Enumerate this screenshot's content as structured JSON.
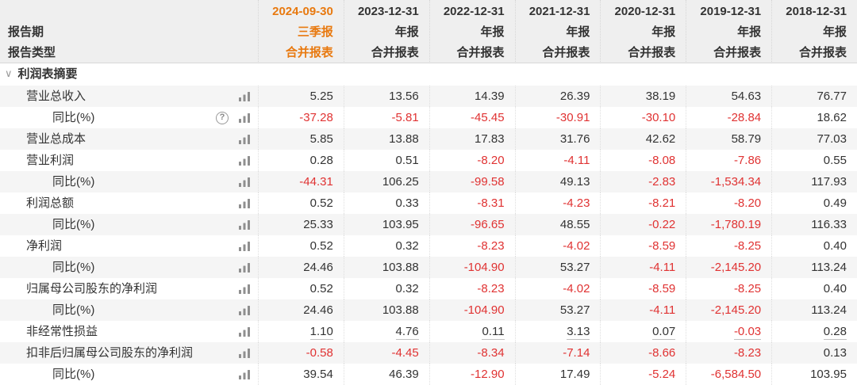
{
  "colors": {
    "accent_orange": "#e8790f",
    "negative_red": "#e03232",
    "text_dark": "#333333",
    "stripe_gray": "#f5f5f5",
    "header_gray": "#efefef"
  },
  "header": {
    "row_period_label": "报告期",
    "row_type_label": "报告类型",
    "columns": [
      {
        "date": "2024-09-30",
        "period": "三季报",
        "type": "合并报表",
        "highlight": true
      },
      {
        "date": "2023-12-31",
        "period": "年报",
        "type": "合并报表",
        "highlight": false
      },
      {
        "date": "2022-12-31",
        "period": "年报",
        "type": "合并报表",
        "highlight": false
      },
      {
        "date": "2021-12-31",
        "period": "年报",
        "type": "合并报表",
        "highlight": false
      },
      {
        "date": "2020-12-31",
        "period": "年报",
        "type": "合并报表",
        "highlight": false
      },
      {
        "date": "2019-12-31",
        "period": "年报",
        "type": "合并报表",
        "highlight": false
      },
      {
        "date": "2018-12-31",
        "period": "年报",
        "type": "合并报表",
        "highlight": false
      }
    ]
  },
  "section": {
    "caret": "∨",
    "title": "利润表摘要"
  },
  "chart_data": {
    "type": "table",
    "title": "利润表摘要",
    "columns": [
      "2024-09-30",
      "2023-12-31",
      "2022-12-31",
      "2021-12-31",
      "2020-12-31",
      "2019-12-31",
      "2018-12-31"
    ],
    "rows": [
      {
        "label": "营业总收入",
        "indent": 1,
        "help": false,
        "underline": false,
        "values": [
          "5.25",
          "13.56",
          "14.39",
          "26.39",
          "38.19",
          "54.63",
          "76.77"
        ]
      },
      {
        "label": "同比(%)",
        "indent": 2,
        "help": true,
        "underline": false,
        "values": [
          "-37.28",
          "-5.81",
          "-45.45",
          "-30.91",
          "-30.10",
          "-28.84",
          "18.62"
        ]
      },
      {
        "label": "营业总成本",
        "indent": 1,
        "help": false,
        "underline": false,
        "values": [
          "5.85",
          "13.88",
          "17.83",
          "31.76",
          "42.62",
          "58.79",
          "77.03"
        ]
      },
      {
        "label": "营业利润",
        "indent": 1,
        "help": false,
        "underline": false,
        "values": [
          "0.28",
          "0.51",
          "-8.20",
          "-4.11",
          "-8.08",
          "-7.86",
          "0.55"
        ]
      },
      {
        "label": "同比(%)",
        "indent": 2,
        "help": false,
        "underline": false,
        "values": [
          "-44.31",
          "106.25",
          "-99.58",
          "49.13",
          "-2.83",
          "-1,534.34",
          "117.93"
        ]
      },
      {
        "label": "利润总额",
        "indent": 1,
        "help": false,
        "underline": false,
        "values": [
          "0.52",
          "0.33",
          "-8.31",
          "-4.23",
          "-8.21",
          "-8.20",
          "0.49"
        ]
      },
      {
        "label": "同比(%)",
        "indent": 2,
        "help": false,
        "underline": false,
        "values": [
          "25.33",
          "103.95",
          "-96.65",
          "48.55",
          "-0.22",
          "-1,780.19",
          "116.33"
        ]
      },
      {
        "label": "净利润",
        "indent": 1,
        "help": false,
        "underline": false,
        "values": [
          "0.52",
          "0.32",
          "-8.23",
          "-4.02",
          "-8.59",
          "-8.25",
          "0.40"
        ]
      },
      {
        "label": "同比(%)",
        "indent": 2,
        "help": false,
        "underline": false,
        "values": [
          "24.46",
          "103.88",
          "-104.90",
          "53.27",
          "-4.11",
          "-2,145.20",
          "113.24"
        ]
      },
      {
        "label": "归属母公司股东的净利润",
        "indent": 1,
        "help": false,
        "underline": false,
        "values": [
          "0.52",
          "0.32",
          "-8.23",
          "-4.02",
          "-8.59",
          "-8.25",
          "0.40"
        ]
      },
      {
        "label": "同比(%)",
        "indent": 2,
        "help": false,
        "underline": false,
        "values": [
          "24.46",
          "103.88",
          "-104.90",
          "53.27",
          "-4.11",
          "-2,145.20",
          "113.24"
        ]
      },
      {
        "label": "非经常性损益",
        "indent": 1,
        "help": false,
        "underline": true,
        "values": [
          "1.10",
          "4.76",
          "0.11",
          "3.13",
          "0.07",
          "-0.03",
          "0.28"
        ]
      },
      {
        "label": "扣非后归属母公司股东的净利润",
        "indent": 1,
        "help": false,
        "underline": false,
        "values": [
          "-0.58",
          "-4.45",
          "-8.34",
          "-7.14",
          "-8.66",
          "-8.23",
          "0.13"
        ]
      },
      {
        "label": "同比(%)",
        "indent": 2,
        "help": false,
        "underline": false,
        "values": [
          "39.54",
          "46.39",
          "-12.90",
          "17.49",
          "-5.24",
          "-6,584.50",
          "103.95"
        ]
      }
    ],
    "icons": {
      "bar": "bar-chart-icon",
      "help": "help-icon"
    },
    "legend_note": "negative values shown in red; 2024-09-30 column header highlighted orange"
  }
}
